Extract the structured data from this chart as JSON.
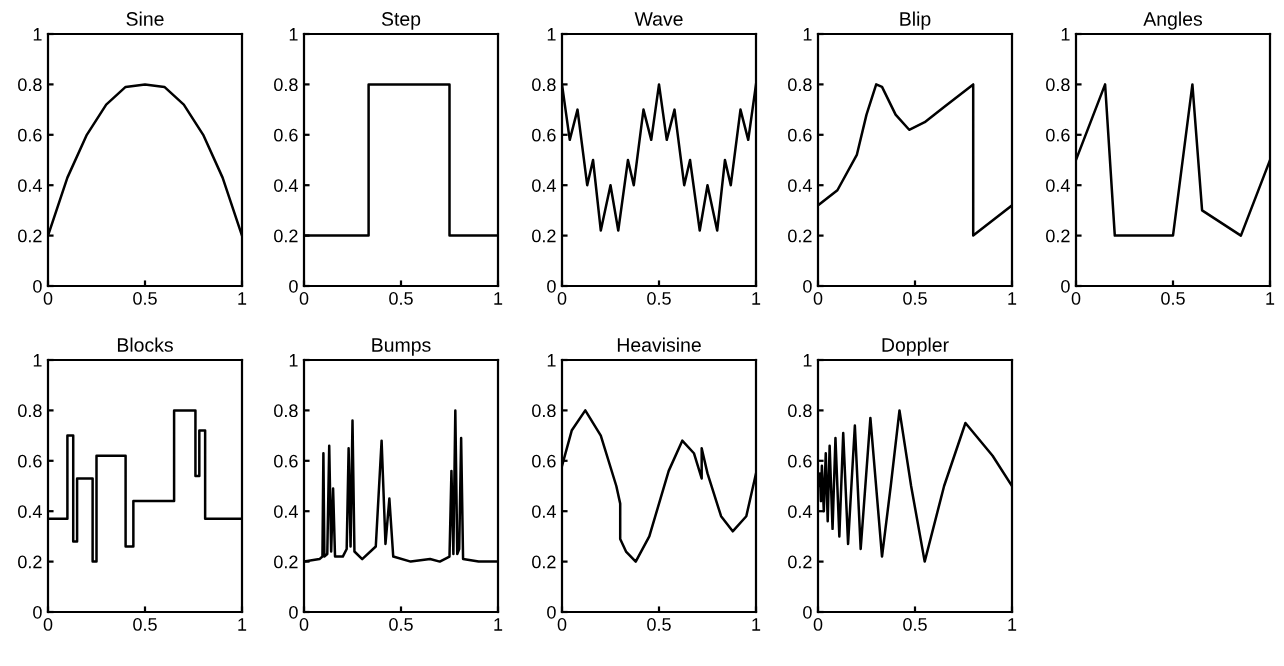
{
  "chart_data": [
    {
      "type": "line",
      "title": "Sine",
      "x": [
        0,
        0.1,
        0.2,
        0.3,
        0.4,
        0.5,
        0.6,
        0.7,
        0.8,
        0.9,
        1
      ],
      "values": [
        0.2,
        0.43,
        0.6,
        0.72,
        0.79,
        0.8,
        0.79,
        0.72,
        0.6,
        0.43,
        0.2
      ],
      "color": "#000000",
      "xlim": [
        0,
        1
      ],
      "ylim": [
        0,
        1
      ],
      "xticks": [
        0,
        0.5,
        1
      ],
      "yticks": [
        0,
        0.2,
        0.4,
        0.6,
        0.8,
        1
      ]
    },
    {
      "type": "line",
      "title": "Step",
      "x": [
        0,
        0.333,
        0.333,
        0.75,
        0.75,
        1
      ],
      "values": [
        0.2,
        0.2,
        0.8,
        0.8,
        0.2,
        0.2
      ],
      "color": "#000000",
      "xlim": [
        0,
        1
      ],
      "ylim": [
        0,
        1
      ],
      "xticks": [
        0,
        0.5,
        1
      ],
      "yticks": [
        0,
        0.2,
        0.4,
        0.6,
        0.8,
        1
      ]
    },
    {
      "type": "line",
      "title": "Wave",
      "x": [
        0,
        0.04,
        0.08,
        0.13,
        0.16,
        0.2,
        0.25,
        0.29,
        0.34,
        0.37,
        0.42,
        0.46,
        0.5,
        0.54,
        0.58,
        0.63,
        0.66,
        0.71,
        0.75,
        0.8,
        0.84,
        0.87,
        0.92,
        0.96,
        1
      ],
      "values": [
        0.8,
        0.58,
        0.7,
        0.4,
        0.5,
        0.22,
        0.4,
        0.22,
        0.5,
        0.4,
        0.7,
        0.58,
        0.8,
        0.58,
        0.7,
        0.4,
        0.5,
        0.22,
        0.4,
        0.22,
        0.5,
        0.4,
        0.7,
        0.58,
        0.8
      ],
      "color": "#000000",
      "xlim": [
        0,
        1
      ],
      "ylim": [
        0,
        1
      ],
      "xticks": [
        0,
        0.5,
        1
      ],
      "yticks": [
        0,
        0.2,
        0.4,
        0.6,
        0.8,
        1
      ]
    },
    {
      "type": "line",
      "title": "Blip",
      "x": [
        0,
        0.1,
        0.2,
        0.25,
        0.3,
        0.33,
        0.4,
        0.47,
        0.55,
        0.65,
        0.8,
        0.8,
        1
      ],
      "values": [
        0.32,
        0.38,
        0.52,
        0.68,
        0.8,
        0.79,
        0.68,
        0.62,
        0.65,
        0.71,
        0.8,
        0.2,
        0.32
      ],
      "color": "#000000",
      "xlim": [
        0,
        1
      ],
      "ylim": [
        0,
        1
      ],
      "xticks": [
        0,
        0.5,
        1
      ],
      "yticks": [
        0,
        0.2,
        0.4,
        0.6,
        0.8,
        1
      ]
    },
    {
      "type": "line",
      "title": "Angles",
      "x": [
        0,
        0.15,
        0.2,
        0.5,
        0.6,
        0.65,
        0.85,
        1
      ],
      "values": [
        0.5,
        0.8,
        0.2,
        0.2,
        0.8,
        0.3,
        0.2,
        0.5
      ],
      "color": "#000000",
      "xlim": [
        0,
        1
      ],
      "ylim": [
        0,
        1
      ],
      "xticks": [
        0,
        0.5,
        1
      ],
      "yticks": [
        0,
        0.2,
        0.4,
        0.6,
        0.8,
        1
      ]
    },
    {
      "type": "line",
      "title": "Blocks",
      "x": [
        0,
        0.1,
        0.1,
        0.13,
        0.13,
        0.15,
        0.15,
        0.23,
        0.23,
        0.25,
        0.25,
        0.4,
        0.4,
        0.44,
        0.44,
        0.65,
        0.65,
        0.76,
        0.76,
        0.78,
        0.78,
        0.81,
        0.81,
        1
      ],
      "values": [
        0.37,
        0.37,
        0.7,
        0.7,
        0.28,
        0.28,
        0.53,
        0.53,
        0.2,
        0.2,
        0.62,
        0.62,
        0.26,
        0.26,
        0.44,
        0.44,
        0.8,
        0.8,
        0.54,
        0.54,
        0.72,
        0.72,
        0.37,
        0.37
      ],
      "color": "#000000",
      "xlim": [
        0,
        1
      ],
      "ylim": [
        0,
        1
      ],
      "xticks": [
        0,
        0.5,
        1
      ],
      "yticks": [
        0,
        0.2,
        0.4,
        0.6,
        0.8,
        1
      ]
    },
    {
      "type": "line",
      "title": "Bumps",
      "x": [
        0,
        0.08,
        0.095,
        0.1,
        0.105,
        0.12,
        0.13,
        0.14,
        0.15,
        0.16,
        0.2,
        0.22,
        0.23,
        0.24,
        0.25,
        0.26,
        0.3,
        0.37,
        0.4,
        0.42,
        0.44,
        0.46,
        0.55,
        0.65,
        0.7,
        0.75,
        0.76,
        0.77,
        0.78,
        0.79,
        0.8,
        0.81,
        0.82,
        0.9,
        1
      ],
      "values": [
        0.2,
        0.21,
        0.22,
        0.63,
        0.22,
        0.23,
        0.66,
        0.24,
        0.49,
        0.22,
        0.22,
        0.25,
        0.65,
        0.26,
        0.76,
        0.24,
        0.21,
        0.26,
        0.68,
        0.27,
        0.45,
        0.22,
        0.2,
        0.21,
        0.2,
        0.22,
        0.56,
        0.23,
        0.8,
        0.23,
        0.25,
        0.69,
        0.21,
        0.2,
        0.2
      ],
      "color": "#000000",
      "xlim": [
        0,
        1
      ],
      "ylim": [
        0,
        1
      ],
      "xticks": [
        0,
        0.5,
        1
      ],
      "yticks": [
        0,
        0.2,
        0.4,
        0.6,
        0.8,
        1
      ]
    },
    {
      "type": "line",
      "title": "Heavisine",
      "x": [
        0,
        0.05,
        0.12,
        0.2,
        0.28,
        0.3,
        0.3,
        0.33,
        0.38,
        0.45,
        0.55,
        0.62,
        0.68,
        0.72,
        0.72,
        0.75,
        0.82,
        0.88,
        0.95,
        1
      ],
      "values": [
        0.58,
        0.72,
        0.8,
        0.7,
        0.5,
        0.43,
        0.29,
        0.24,
        0.2,
        0.3,
        0.56,
        0.68,
        0.63,
        0.53,
        0.65,
        0.55,
        0.38,
        0.32,
        0.38,
        0.55
      ],
      "color": "#000000",
      "xlim": [
        0,
        1
      ],
      "ylim": [
        0,
        1
      ],
      "xticks": [
        0,
        0.5,
        1
      ],
      "yticks": [
        0,
        0.2,
        0.4,
        0.6,
        0.8,
        1
      ]
    },
    {
      "type": "line",
      "title": "Doppler",
      "x": [
        0,
        0.01,
        0.015,
        0.02,
        0.03,
        0.04,
        0.05,
        0.06,
        0.075,
        0.09,
        0.11,
        0.13,
        0.155,
        0.19,
        0.22,
        0.27,
        0.33,
        0.375,
        0.42,
        0.48,
        0.55,
        0.65,
        0.76,
        0.9,
        1
      ],
      "values": [
        0.5,
        0.55,
        0.44,
        0.58,
        0.4,
        0.63,
        0.36,
        0.66,
        0.33,
        0.69,
        0.3,
        0.71,
        0.27,
        0.74,
        0.25,
        0.77,
        0.22,
        0.5,
        0.8,
        0.5,
        0.2,
        0.5,
        0.75,
        0.62,
        0.5
      ],
      "color": "#000000",
      "xlim": [
        0,
        1
      ],
      "ylim": [
        0,
        1
      ],
      "xticks": [
        0,
        0.5,
        1
      ],
      "yticks": [
        0,
        0.2,
        0.4,
        0.6,
        0.8,
        1
      ]
    }
  ]
}
